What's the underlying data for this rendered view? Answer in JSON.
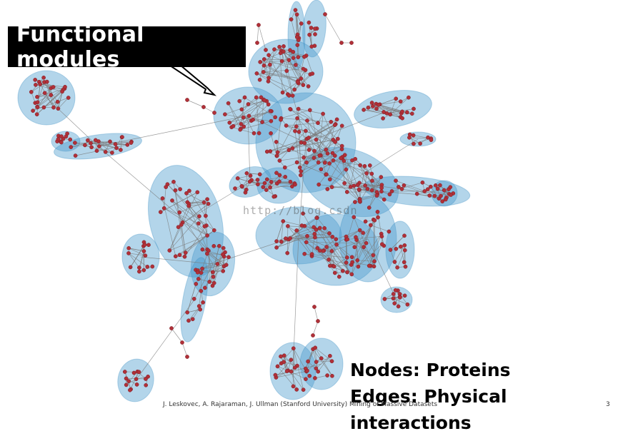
{
  "callout": {
    "label": "Functional modules"
  },
  "legend": {
    "nodes": "Nodes: Proteins",
    "edges": "Edges: Physical interactions"
  },
  "footer": {
    "citation": "J. Leskovec, A. Rajaraman, J. Ullman (Stanford University)  Mining of Massive Datasets",
    "page": "3"
  },
  "watermark": "http://blog.csdn",
  "colors": {
    "module_fill": "#4a9ccc",
    "node": "#b03038",
    "edge": "#7a7a7a",
    "callout_bg": "#000000",
    "callout_text": "#ffffff"
  },
  "icons": {
    "callout_arrow": "arrow-icon"
  }
}
